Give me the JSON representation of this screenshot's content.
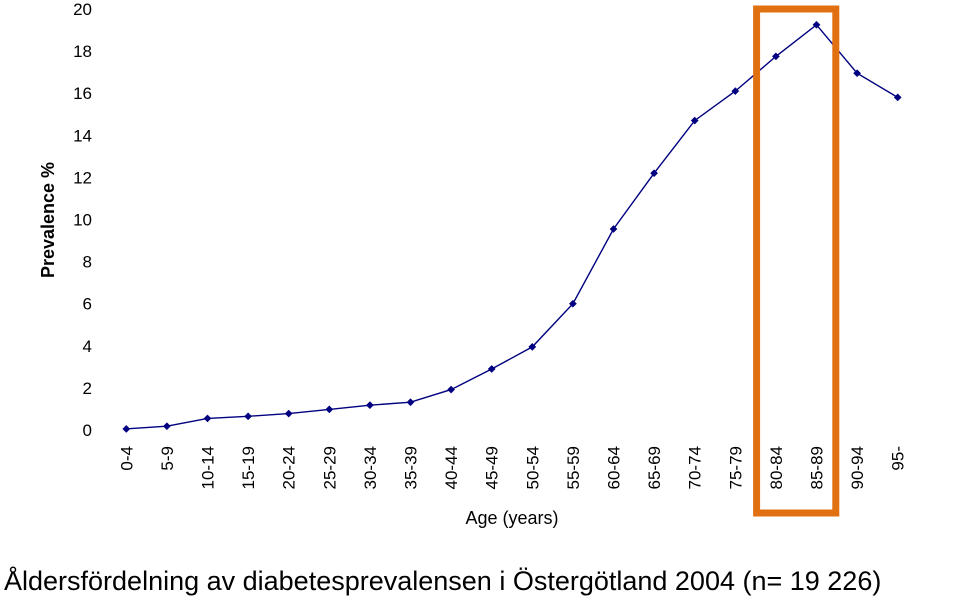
{
  "chart_data": {
    "type": "line",
    "title": "",
    "xlabel": "Age (years)",
    "ylabel": "Prevalence %",
    "ylim": [
      0,
      20
    ],
    "yticks": [
      0,
      2,
      4,
      6,
      8,
      10,
      12,
      14,
      16,
      18,
      20
    ],
    "grid": false,
    "categories": [
      "0-4",
      "5-9",
      "10-14",
      "15-19",
      "20-24",
      "25-29",
      "30-34",
      "35-39",
      "40-44",
      "45-49",
      "50-54",
      "55-59",
      "60-64",
      "65-69",
      "70-74",
      "75-79",
      "80-84",
      "85-89",
      "90-94",
      "95-"
    ],
    "series": [
      {
        "values": [
          0.05,
          0.18,
          0.55,
          0.65,
          0.78,
          0.98,
          1.18,
          1.32,
          1.92,
          2.9,
          3.95,
          6.0,
          9.55,
          12.2,
          14.7,
          16.1,
          17.75,
          19.25,
          16.95,
          15.8
        ],
        "color": "#000080"
      }
    ],
    "highlight": {
      "categories": [
        "80-84",
        "85-89"
      ],
      "color": "#E07010"
    },
    "caption": "Åldersfördelning av diabetesprevalensen i Östergötland 2004 (n= 19 226)"
  }
}
